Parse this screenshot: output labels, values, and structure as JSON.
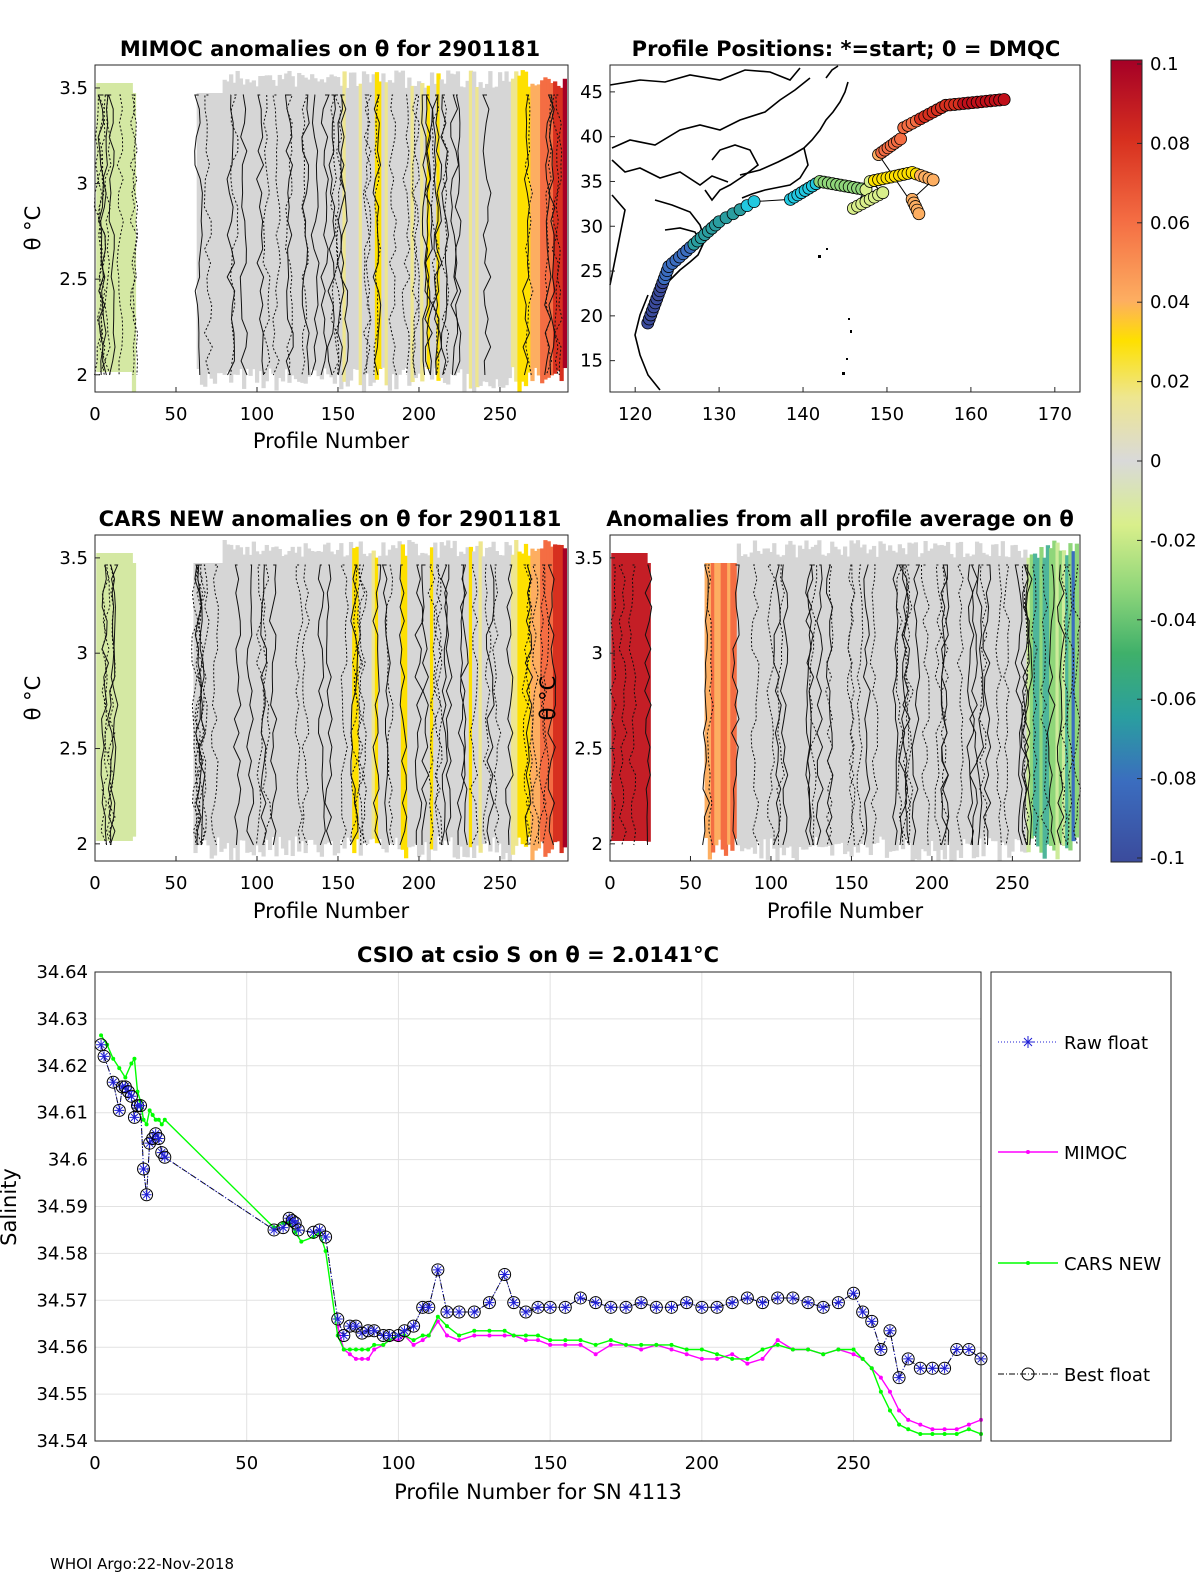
{
  "footer": "WHOI Argo:22-Nov-2018",
  "panels": {
    "mimoc": {
      "title": "MIMOC anomalies on θ  for 2901181",
      "xlabel": "Profile Number",
      "ylabel": "θ °C",
      "xticks": [
        "0",
        "50",
        "100",
        "150",
        "200",
        "250"
      ],
      "yticks": [
        "2",
        "2.5",
        "3",
        "3.5"
      ]
    },
    "positions": {
      "title": "Profile Positions: *=start; 0 = DMQC",
      "xticks": [
        "120",
        "130",
        "140",
        "150",
        "160",
        "170"
      ],
      "yticks": [
        "15",
        "20",
        "25",
        "30",
        "35",
        "40",
        "45"
      ]
    },
    "cars": {
      "title": "CARS NEW anomalies on θ for 2901181",
      "xlabel": "Profile Number",
      "ylabel": "θ °C",
      "xticks": [
        "0",
        "50",
        "100",
        "150",
        "200",
        "250"
      ],
      "yticks": [
        "2",
        "2.5",
        "3",
        "3.5"
      ]
    },
    "avg": {
      "title": "Anomalies from all profile average on θ",
      "xlabel": "Profile Number",
      "ylabel": "θ °C",
      "xticks": [
        "0",
        "50",
        "100",
        "150",
        "200",
        "250"
      ],
      "yticks": [
        "2",
        "2.5",
        "3",
        "3.5"
      ]
    }
  },
  "colorbar": {
    "ticks": [
      "0.1",
      "0.08",
      "0.06",
      "0.04",
      "0.02",
      "0",
      "-0.02",
      "-0.04",
      "-0.06",
      "-0.08",
      "-0.1"
    ]
  },
  "colors": {
    "grey": "#d9d9d9",
    "raw": "#1f1fd6",
    "mimoc": "#ff00ff",
    "cars": "#00ff00",
    "best": "#000000"
  },
  "chart_data": {
    "type": "line",
    "title": "CSIO at csio S on θ = 2.0141°C",
    "xlabel": "Profile Number for SN 4113",
    "ylabel": "Salinity",
    "xlim": [
      0,
      292
    ],
    "ylim": [
      34.54,
      34.64
    ],
    "xticks": [
      "0",
      "50",
      "100",
      "150",
      "200",
      "250"
    ],
    "yticks": [
      "34.54",
      "34.55",
      "34.56",
      "34.57",
      "34.58",
      "34.59",
      "34.6",
      "34.61",
      "34.62",
      "34.63",
      "34.64"
    ],
    "legend": [
      "Raw float",
      "MIMOC",
      "CARS NEW",
      "Best float"
    ],
    "legend_position": "outside-right",
    "series": [
      {
        "name": "Best float",
        "x": [
          2,
          3,
          6,
          8,
          9,
          10,
          11,
          12,
          13,
          14,
          15,
          16,
          17,
          18,
          19,
          20,
          21,
          22,
          23,
          59,
          62,
          64,
          65,
          66,
          67,
          72,
          74,
          76,
          80,
          82,
          84,
          86,
          88,
          90,
          92,
          95,
          97,
          100,
          102,
          105,
          108,
          110,
          113,
          116,
          120,
          125,
          130,
          135,
          138,
          142,
          146,
          150,
          155,
          160,
          165,
          170,
          175,
          180,
          185,
          190,
          195,
          200,
          205,
          210,
          215,
          220,
          225,
          230,
          235,
          240,
          245,
          250,
          253,
          256,
          259,
          262,
          265,
          268,
          272,
          276,
          280,
          284,
          288,
          292
        ],
        "y": [
          34.6245,
          34.622,
          34.6165,
          34.6105,
          34.6155,
          34.6155,
          34.6145,
          34.6135,
          34.609,
          34.6115,
          34.6115,
          34.598,
          34.5925,
          34.6035,
          34.6045,
          34.6055,
          34.6045,
          34.6015,
          34.6005,
          34.585,
          34.5855,
          34.5875,
          34.587,
          34.5865,
          34.585,
          34.5845,
          34.585,
          34.5835,
          34.566,
          34.5625,
          34.5645,
          34.5645,
          34.563,
          34.5635,
          34.5635,
          34.5625,
          34.5625,
          34.5625,
          34.5635,
          34.5645,
          34.5685,
          34.5685,
          34.5765,
          34.5675,
          34.5675,
          34.5675,
          34.5695,
          34.5755,
          34.5695,
          34.5675,
          34.5685,
          34.5685,
          34.5685,
          34.5705,
          34.5695,
          34.5685,
          34.5685,
          34.5695,
          34.5685,
          34.5685,
          34.5695,
          34.5685,
          34.5685,
          34.5695,
          34.5705,
          34.5695,
          34.5705,
          34.5705,
          34.5695,
          34.5685,
          34.5695,
          34.5715,
          34.5675,
          34.5655,
          34.5595,
          34.5635,
          34.5535,
          34.5575,
          34.5555,
          34.5555,
          34.5555,
          34.5595,
          34.5595,
          34.5575
        ]
      },
      {
        "name": "MIMOC",
        "x": [
          80,
          82,
          84,
          86,
          88,
          90,
          92,
          95,
          97,
          100,
          102,
          105,
          108,
          110,
          113,
          116,
          120,
          125,
          130,
          135,
          138,
          142,
          146,
          150,
          155,
          160,
          165,
          170,
          175,
          180,
          185,
          190,
          195,
          200,
          205,
          210,
          215,
          220,
          225,
          230,
          235,
          240,
          245,
          250,
          253,
          256,
          259,
          262,
          265,
          268,
          272,
          276,
          280,
          284,
          288,
          292
        ],
        "y": [
          34.5645,
          34.5595,
          34.5585,
          34.5575,
          34.5575,
          34.5575,
          34.5595,
          34.5605,
          34.5615,
          34.5615,
          34.5625,
          34.5605,
          34.5615,
          34.5625,
          34.5655,
          34.5625,
          34.5615,
          34.5625,
          34.5625,
          34.5625,
          34.5625,
          34.5615,
          34.5615,
          34.5605,
          34.5605,
          34.5605,
          34.5585,
          34.5605,
          34.5605,
          34.5595,
          34.5605,
          34.5595,
          34.5585,
          34.5575,
          34.5575,
          34.5585,
          34.5565,
          34.5575,
          34.5615,
          34.5595,
          34.5595,
          34.5585,
          34.5595,
          34.5585,
          34.5575,
          34.5555,
          34.5535,
          34.5505,
          34.5465,
          34.5445,
          34.5435,
          34.5425,
          34.5425,
          34.5425,
          34.5435,
          34.5445
        ]
      },
      {
        "name": "CARS NEW",
        "x": [
          2,
          4,
          6,
          8,
          10,
          12,
          13,
          14,
          15,
          16,
          17,
          18,
          19,
          20,
          21,
          22,
          23,
          59,
          62,
          64,
          66,
          68,
          72,
          74,
          76,
          80,
          82,
          84,
          86,
          88,
          90,
          92,
          95,
          97,
          100,
          102,
          105,
          108,
          110,
          113,
          116,
          120,
          125,
          130,
          135,
          138,
          142,
          146,
          150,
          155,
          160,
          165,
          170,
          175,
          180,
          185,
          190,
          195,
          200,
          205,
          210,
          215,
          220,
          225,
          230,
          235,
          240,
          245,
          250,
          253,
          256,
          259,
          262,
          265,
          268,
          272,
          276,
          280,
          284,
          288,
          292
        ],
        "y": [
          34.6265,
          34.6245,
          34.6215,
          34.6195,
          34.6175,
          34.6205,
          34.6215,
          34.6145,
          34.6125,
          34.6085,
          34.6075,
          34.6105,
          34.6095,
          34.6085,
          34.6085,
          34.6075,
          34.6085,
          34.5855,
          34.5865,
          34.5865,
          34.5845,
          34.5825,
          34.5835,
          34.5845,
          34.5805,
          34.5625,
          34.5595,
          34.5595,
          34.5595,
          34.5595,
          34.5595,
          34.5605,
          34.5605,
          34.5615,
          34.5625,
          34.5625,
          34.5615,
          34.5625,
          34.5625,
          34.5665,
          34.5645,
          34.5625,
          34.5635,
          34.5635,
          34.5635,
          34.5625,
          34.5625,
          34.5625,
          34.5615,
          34.5615,
          34.5615,
          34.5605,
          34.5615,
          34.5605,
          34.5605,
          34.5605,
          34.5605,
          34.5595,
          34.5595,
          34.5585,
          34.5575,
          34.5575,
          34.5595,
          34.5605,
          34.5595,
          34.5595,
          34.5585,
          34.5595,
          34.5595,
          34.5575,
          34.5555,
          34.5505,
          34.5465,
          34.5435,
          34.5425,
          34.5415,
          34.5415,
          34.5415,
          34.5415,
          34.5425,
          34.5415
        ]
      }
    ]
  }
}
